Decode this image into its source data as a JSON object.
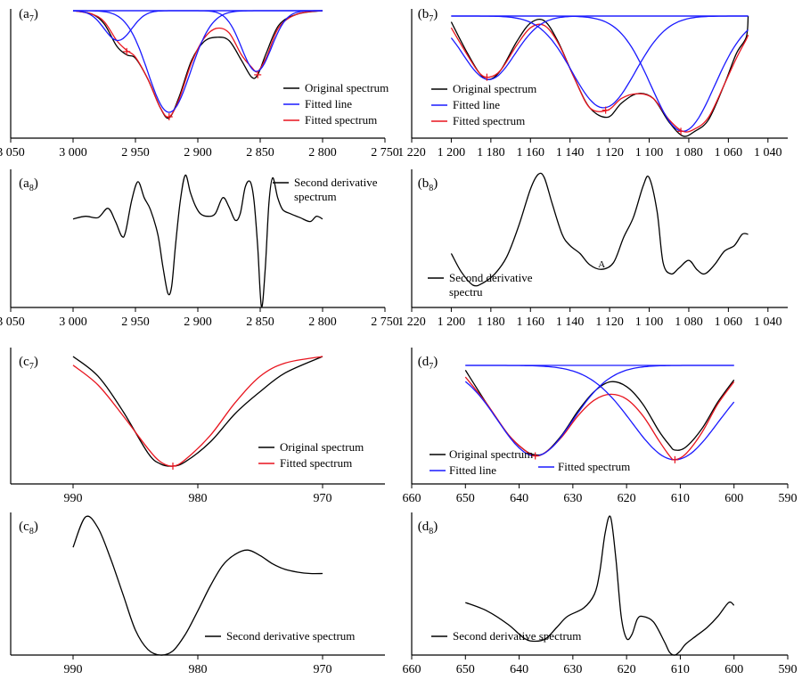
{
  "colors": {
    "original": "#000000",
    "fitted_line": "#1a1aff",
    "fitted_spectrum": "#e8141e",
    "axis": "#000000"
  },
  "chart_data": [
    {
      "id": "a7",
      "type": "line",
      "panel_label": "(a",
      "panel_sub": "7",
      "x_ticks": [
        "3 050",
        "3 000",
        "2 950",
        "2 900",
        "2 850",
        "2 800",
        "2 750"
      ],
      "x_tick_values": [
        3050,
        3000,
        2950,
        2900,
        2850,
        2800,
        2750
      ],
      "xlim": [
        3050,
        2750
      ],
      "ylim": [
        0,
        1
      ],
      "legend_placement": "bottom-right",
      "legend": [
        {
          "key": "original",
          "label": "Original spectrum"
        },
        {
          "key": "fitted_line",
          "label": "Fitted line"
        },
        {
          "key": "fitted_spectrum",
          "label": "Fitted spectrum"
        }
      ],
      "series": [
        {
          "key": "original",
          "x": [
            3000,
            2985,
            2975,
            2965,
            2957,
            2950,
            2940,
            2930,
            2923,
            2915,
            2905,
            2895,
            2885,
            2875,
            2865,
            2857,
            2852,
            2845,
            2835,
            2820,
            2800
          ],
          "y": [
            0.0,
            0.03,
            0.12,
            0.32,
            0.4,
            0.43,
            0.62,
            0.88,
            0.97,
            0.78,
            0.45,
            0.28,
            0.24,
            0.27,
            0.45,
            0.6,
            0.58,
            0.38,
            0.13,
            0.03,
            0.0
          ]
        },
        {
          "key": "fitted_spectrum",
          "x": [
            3000,
            2985,
            2975,
            2965,
            2957,
            2950,
            2940,
            2930,
            2923,
            2915,
            2905,
            2895,
            2885,
            2875,
            2865,
            2857,
            2852,
            2845,
            2835,
            2820,
            2800
          ],
          "y": [
            0.0,
            0.03,
            0.1,
            0.27,
            0.36,
            0.42,
            0.62,
            0.88,
            0.96,
            0.8,
            0.47,
            0.25,
            0.16,
            0.2,
            0.4,
            0.51,
            0.55,
            0.42,
            0.15,
            0.03,
            0.0
          ]
        },
        {
          "key": "fitted_line",
          "gauss": [
            0.27,
            2964,
            11
          ]
        },
        {
          "key": "fitted_line",
          "gauss": [
            0.92,
            2923,
            17
          ]
        },
        {
          "key": "fitted_line",
          "gauss": [
            0.55,
            2853,
            12
          ]
        }
      ],
      "markers": [
        [
          2957,
          0.37
        ],
        [
          2923,
          0.96
        ],
        [
          2852,
          0.58
        ]
      ]
    },
    {
      "id": "b7",
      "type": "line",
      "panel_label": "(b",
      "panel_sub": "7",
      "x_ticks": [
        "1 220",
        "1 200",
        "1 180",
        "1 160",
        "1 140",
        "1 120",
        "1 100",
        "1 080",
        "1 060",
        "1 040"
      ],
      "x_tick_values": [
        1220,
        1200,
        1180,
        1160,
        1140,
        1120,
        1100,
        1080,
        1060,
        1040
      ],
      "xlim": [
        1220,
        1030
      ],
      "ylim": [
        0,
        1
      ],
      "legend_placement": "bottom-left",
      "legend": [
        {
          "key": "original",
          "label": "Original spectrum"
        },
        {
          "key": "fitted_line",
          "label": "Fitted line"
        },
        {
          "key": "fitted_spectrum",
          "label": "Fitted spectrum"
        }
      ],
      "series": [
        {
          "key": "original",
          "x": [
            1200,
            1193,
            1186,
            1181,
            1175,
            1167,
            1160,
            1153,
            1146,
            1138,
            1130,
            1121,
            1114,
            1106,
            1098,
            1090,
            1083,
            1077,
            1070,
            1062,
            1056,
            1051,
            1050
          ],
          "y": [
            0.05,
            0.28,
            0.48,
            0.54,
            0.46,
            0.22,
            0.06,
            0.04,
            0.22,
            0.52,
            0.78,
            0.86,
            0.74,
            0.66,
            0.7,
            0.9,
            1.02,
            0.98,
            0.88,
            0.58,
            0.32,
            0.18,
            0.0
          ]
        },
        {
          "key": "fitted_spectrum",
          "x": [
            1200,
            1193,
            1186,
            1181,
            1175,
            1167,
            1160,
            1153,
            1146,
            1138,
            1130,
            1121,
            1114,
            1106,
            1098,
            1090,
            1083,
            1077,
            1070,
            1062,
            1056,
            1051,
            1050
          ],
          "y": [
            0.1,
            0.3,
            0.48,
            0.52,
            0.46,
            0.25,
            0.1,
            0.08,
            0.23,
            0.52,
            0.78,
            0.8,
            0.7,
            0.66,
            0.7,
            0.88,
            0.98,
            0.96,
            0.86,
            0.58,
            0.36,
            0.2,
            0.16
          ]
        },
        {
          "key": "fitted_line",
          "gauss": [
            0.54,
            1181,
            13
          ]
        },
        {
          "key": "fitted_line",
          "gauss": [
            0.78,
            1123,
            16
          ]
        },
        {
          "key": "fitted_line",
          "gauss": [
            0.98,
            1083,
            16
          ]
        }
      ],
      "markers": [
        [
          1182,
          0.52
        ],
        [
          1122,
          0.8
        ],
        [
          1084,
          0.98
        ]
      ]
    },
    {
      "id": "a8",
      "type": "line",
      "panel_label": "(a",
      "panel_sub": "8",
      "x_ticks": [
        "3 050",
        "3 000",
        "2 950",
        "2 900",
        "2 850",
        "2 800",
        "2 750"
      ],
      "x_tick_values": [
        3050,
        3000,
        2950,
        2900,
        2850,
        2800,
        2750
      ],
      "xlim": [
        3050,
        2750
      ],
      "ylim": [
        0,
        1
      ],
      "legend_placement": "top-right",
      "legend": [
        {
          "key": "original",
          "label": "Second derivative",
          "label2": "spectrum"
        }
      ],
      "series": [
        {
          "key": "original",
          "x": [
            3000,
            2990,
            2980,
            2972,
            2966,
            2961,
            2958,
            2953,
            2948,
            2943,
            2938,
            2932,
            2928,
            2924,
            2921,
            2918,
            2914,
            2910,
            2906,
            2902,
            2898,
            2892,
            2886,
            2880,
            2875,
            2870,
            2866,
            2862,
            2858,
            2855,
            2852,
            2849,
            2846,
            2843,
            2840,
            2836,
            2832,
            2826,
            2818,
            2810,
            2805,
            2800
          ],
          "y": [
            0.34,
            0.32,
            0.33,
            0.26,
            0.36,
            0.47,
            0.44,
            0.2,
            0.06,
            0.18,
            0.27,
            0.46,
            0.7,
            0.9,
            0.85,
            0.55,
            0.2,
            0.01,
            0.14,
            0.24,
            0.3,
            0.32,
            0.3,
            0.18,
            0.25,
            0.35,
            0.3,
            0.1,
            0.06,
            0.2,
            0.55,
            1.0,
            0.72,
            0.22,
            0.03,
            0.18,
            0.27,
            0.3,
            0.33,
            0.36,
            0.32,
            0.34
          ]
        }
      ]
    },
    {
      "id": "b8",
      "type": "line",
      "panel_label": "(b",
      "panel_sub": "8",
      "x_ticks": [
        "1 220",
        "1 200",
        "1 180",
        "1 160",
        "1 140",
        "1 120",
        "1 100",
        "1 080",
        "1 060",
        "1 040"
      ],
      "x_tick_values": [
        1220,
        1200,
        1180,
        1160,
        1140,
        1120,
        1100,
        1080,
        1060,
        1040
      ],
      "xlim": [
        1220,
        1030
      ],
      "ylim": [
        0,
        1
      ],
      "legend_placement": "bottom-left",
      "legend": [
        {
          "key": "original",
          "label": "Second derivative",
          "label2": "spectru"
        }
      ],
      "annotations": [
        {
          "text": "A",
          "x": 1124,
          "y": 0.86
        }
      ],
      "series": [
        {
          "key": "original",
          "x": [
            1200,
            1195,
            1189,
            1184,
            1178,
            1172,
            1166,
            1160,
            1156,
            1153,
            1149,
            1144,
            1140,
            1135,
            1130,
            1124,
            1118,
            1113,
            1108,
            1103,
            1100,
            1096,
            1093,
            1089,
            1085,
            1080,
            1076,
            1072,
            1067,
            1062,
            1057,
            1053,
            1050
          ],
          "y": [
            0.72,
            0.88,
            1.0,
            0.98,
            0.9,
            0.75,
            0.48,
            0.15,
            0.02,
            0.05,
            0.28,
            0.55,
            0.65,
            0.72,
            0.82,
            0.86,
            0.8,
            0.58,
            0.4,
            0.12,
            0.05,
            0.35,
            0.8,
            0.9,
            0.85,
            0.78,
            0.86,
            0.9,
            0.82,
            0.7,
            0.65,
            0.55,
            0.55
          ]
        }
      ]
    },
    {
      "id": "c7",
      "type": "line",
      "panel_label": "(c",
      "panel_sub": "7",
      "x_ticks": [
        "990",
        "980",
        "970"
      ],
      "x_tick_values": [
        990,
        980,
        970
      ],
      "xlim": [
        995,
        965
      ],
      "ylim": [
        0,
        1
      ],
      "legend_placement": "bottom-right",
      "legend": [
        {
          "key": "original",
          "label": "Original spectrum"
        },
        {
          "key": "fitted_spectrum",
          "label": "Fitted spectrum"
        }
      ],
      "series": [
        {
          "key": "original",
          "x": [
            990,
            988,
            986,
            984,
            983,
            982,
            981,
            979,
            977,
            975,
            973,
            970
          ],
          "y": [
            0.0,
            0.18,
            0.5,
            0.88,
            0.98,
            1.0,
            0.96,
            0.78,
            0.52,
            0.32,
            0.15,
            0.0
          ]
        },
        {
          "key": "fitted_spectrum",
          "x": [
            990,
            988,
            986,
            984,
            983,
            982,
            981,
            979,
            977,
            975,
            973,
            970
          ],
          "y": [
            0.08,
            0.26,
            0.54,
            0.84,
            0.96,
            1.0,
            0.94,
            0.72,
            0.42,
            0.18,
            0.06,
            0.0
          ]
        }
      ],
      "markers": [
        [
          982,
          1.0
        ]
      ]
    },
    {
      "id": "d7",
      "type": "line",
      "panel_label": "(d",
      "panel_sub": "7",
      "x_ticks": [
        "660",
        "650",
        "640",
        "630",
        "620",
        "610",
        "600",
        "590"
      ],
      "x_tick_values": [
        660,
        650,
        640,
        630,
        620,
        610,
        600,
        590
      ],
      "xlim": [
        660,
        590
      ],
      "ylim": [
        0,
        1
      ],
      "legend_placement": "bottom-left",
      "legend": [
        {
          "key": "original",
          "label": "Original spectrum"
        },
        {
          "key": "fitted_line",
          "label": "Fitted line"
        },
        {
          "key": "fitted_spectrum",
          "label": "Fitted spectrum",
          "color_key": "fitted_line"
        }
      ],
      "series": [
        {
          "key": "original",
          "x": [
            650,
            646,
            642,
            639,
            637,
            635,
            632,
            629,
            626,
            623,
            620,
            617,
            614,
            612,
            611,
            609,
            606,
            603,
            600
          ],
          "y": [
            0.05,
            0.4,
            0.72,
            0.88,
            0.93,
            0.9,
            0.72,
            0.47,
            0.27,
            0.17,
            0.22,
            0.4,
            0.68,
            0.83,
            0.88,
            0.85,
            0.66,
            0.38,
            0.15
          ]
        },
        {
          "key": "fitted_spectrum",
          "x": [
            650,
            646,
            642,
            639,
            637,
            635,
            632,
            629,
            626,
            623,
            620,
            617,
            614,
            612,
            611,
            609,
            606,
            603,
            600
          ],
          "y": [
            0.12,
            0.4,
            0.72,
            0.88,
            0.94,
            0.9,
            0.74,
            0.52,
            0.36,
            0.3,
            0.35,
            0.52,
            0.78,
            0.94,
            0.98,
            0.92,
            0.7,
            0.4,
            0.17
          ]
        },
        {
          "key": "fitted_line",
          "gauss": [
            0.94,
            637,
            7
          ]
        },
        {
          "key": "fitted_line",
          "gauss": [
            0.98,
            611,
            8
          ]
        }
      ],
      "markers": [
        [
          637,
          0.94
        ],
        [
          611,
          0.98
        ]
      ]
    },
    {
      "id": "c8",
      "type": "line",
      "panel_label": "(c",
      "panel_sub": "8",
      "x_ticks": [
        "990",
        "980",
        "970"
      ],
      "x_tick_values": [
        990,
        980,
        970
      ],
      "xlim": [
        995,
        965
      ],
      "ylim": [
        0,
        1
      ],
      "legend_placement": "bottom-right",
      "legend": [
        {
          "key": "original",
          "label": "Second derivative spectrum"
        }
      ],
      "series": [
        {
          "key": "original",
          "x": [
            990,
            989,
            988,
            987,
            986,
            985,
            984,
            983,
            982,
            981,
            980,
            979,
            978,
            977,
            976,
            975,
            974,
            973,
            972,
            971,
            970
          ],
          "y": [
            0.22,
            0.0,
            0.08,
            0.3,
            0.56,
            0.82,
            0.96,
            1.0,
            0.97,
            0.85,
            0.68,
            0.5,
            0.35,
            0.27,
            0.24,
            0.28,
            0.34,
            0.38,
            0.4,
            0.41,
            0.41
          ]
        }
      ]
    },
    {
      "id": "d8",
      "type": "line",
      "panel_label": "(d",
      "panel_sub": "8",
      "x_ticks": [
        "660",
        "650",
        "640",
        "630",
        "620",
        "610",
        "600",
        "590"
      ],
      "x_tick_values": [
        660,
        650,
        640,
        630,
        620,
        610,
        600,
        590
      ],
      "xlim": [
        660,
        590
      ],
      "ylim": [
        0,
        1
      ],
      "legend_placement": "bottom-left",
      "legend": [
        {
          "key": "original",
          "label": "Second derivative spectrum"
        }
      ],
      "series": [
        {
          "key": "original",
          "x": [
            650,
            646,
            642,
            639,
            637,
            635,
            633,
            631,
            628,
            626,
            625,
            624,
            623,
            622,
            621,
            620,
            619,
            618,
            617,
            615,
            613,
            612,
            611,
            610,
            609,
            607,
            605,
            603,
            601,
            600
          ],
          "y": [
            0.62,
            0.68,
            0.78,
            0.88,
            0.9,
            0.88,
            0.8,
            0.72,
            0.66,
            0.56,
            0.4,
            0.12,
            0.0,
            0.3,
            0.72,
            0.88,
            0.85,
            0.74,
            0.72,
            0.76,
            0.9,
            0.98,
            1.0,
            0.97,
            0.92,
            0.86,
            0.8,
            0.72,
            0.62,
            0.64
          ]
        }
      ]
    }
  ]
}
